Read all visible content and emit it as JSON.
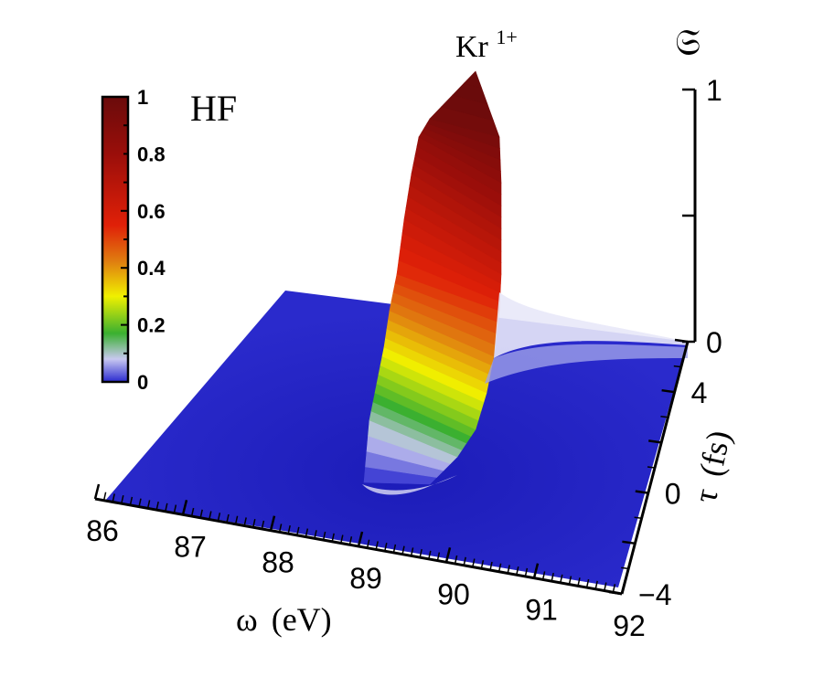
{
  "chart_data": {
    "type": "surface",
    "title": "Kr",
    "title_superscript": "1+",
    "panel_label": "HF",
    "x_axis": {
      "label_symbol": "ω",
      "label_unit": "(eV)",
      "range": [
        86,
        92
      ],
      "ticks": [
        86,
        87,
        88,
        89,
        90,
        91,
        92
      ],
      "tick_labels": [
        "86",
        "87",
        "88",
        "89",
        "90",
        "91",
        "92"
      ]
    },
    "y_axis": {
      "label_symbol": "τ",
      "label_unit": "(fs)",
      "range": [
        -4,
        6
      ],
      "ticks": [
        -4,
        0,
        4
      ],
      "tick_labels": [
        "−4",
        "0",
        "4"
      ]
    },
    "z_axis": {
      "label": "𝔖",
      "range": [
        0,
        1
      ],
      "ticks": [
        0,
        0.5,
        1
      ],
      "tick_labels": [
        "0",
        "",
        "1"
      ]
    },
    "colorbar": {
      "range": [
        0,
        1
      ],
      "ticks": [
        0,
        0.2,
        0.4,
        0.6,
        0.8,
        1
      ],
      "tick_labels": [
        "0",
        "0.2",
        "0.4",
        "0.6",
        "0.8",
        "1"
      ],
      "colors": [
        "#2a2ad0",
        "#c8c8f0",
        "#3ab030",
        "#f0f000",
        "#e08010",
        "#e02008",
        "#9a0e0a",
        "#6a0b0b"
      ]
    },
    "peak": {
      "omega": 89.5,
      "max_value": 1.0
    }
  }
}
